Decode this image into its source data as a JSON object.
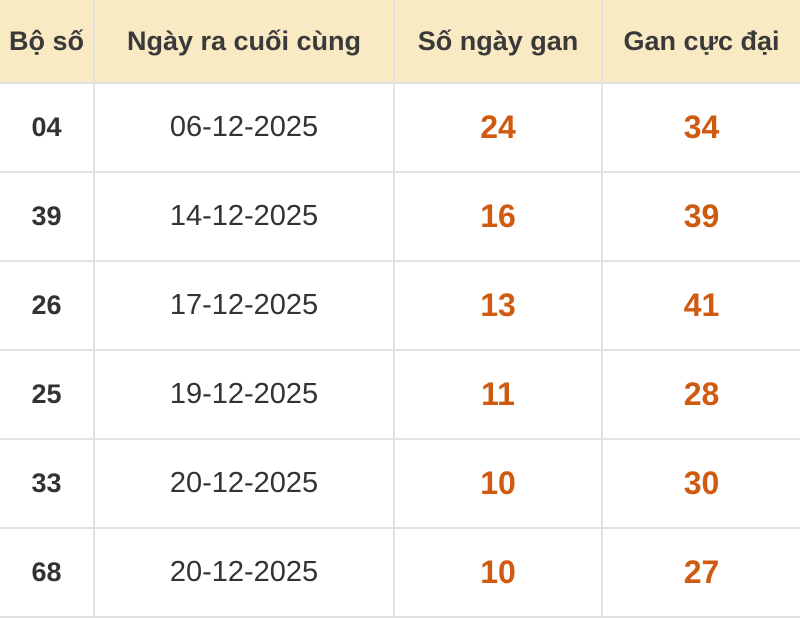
{
  "table": {
    "header": [
      "Bộ số",
      "Ngày ra cuối cùng",
      "Số ngày gan",
      "Gan cực đại"
    ],
    "rows": [
      [
        "04",
        "06-12-2025",
        24,
        34
      ],
      [
        "39",
        "14-12-2025",
        16,
        39
      ],
      [
        "26",
        "17-12-2025",
        13,
        41
      ],
      [
        "25",
        "19-12-2025",
        11,
        28
      ],
      [
        "33",
        "20-12-2025",
        10,
        30
      ],
      [
        "68",
        "20-12-2025",
        10,
        27
      ]
    ]
  }
}
